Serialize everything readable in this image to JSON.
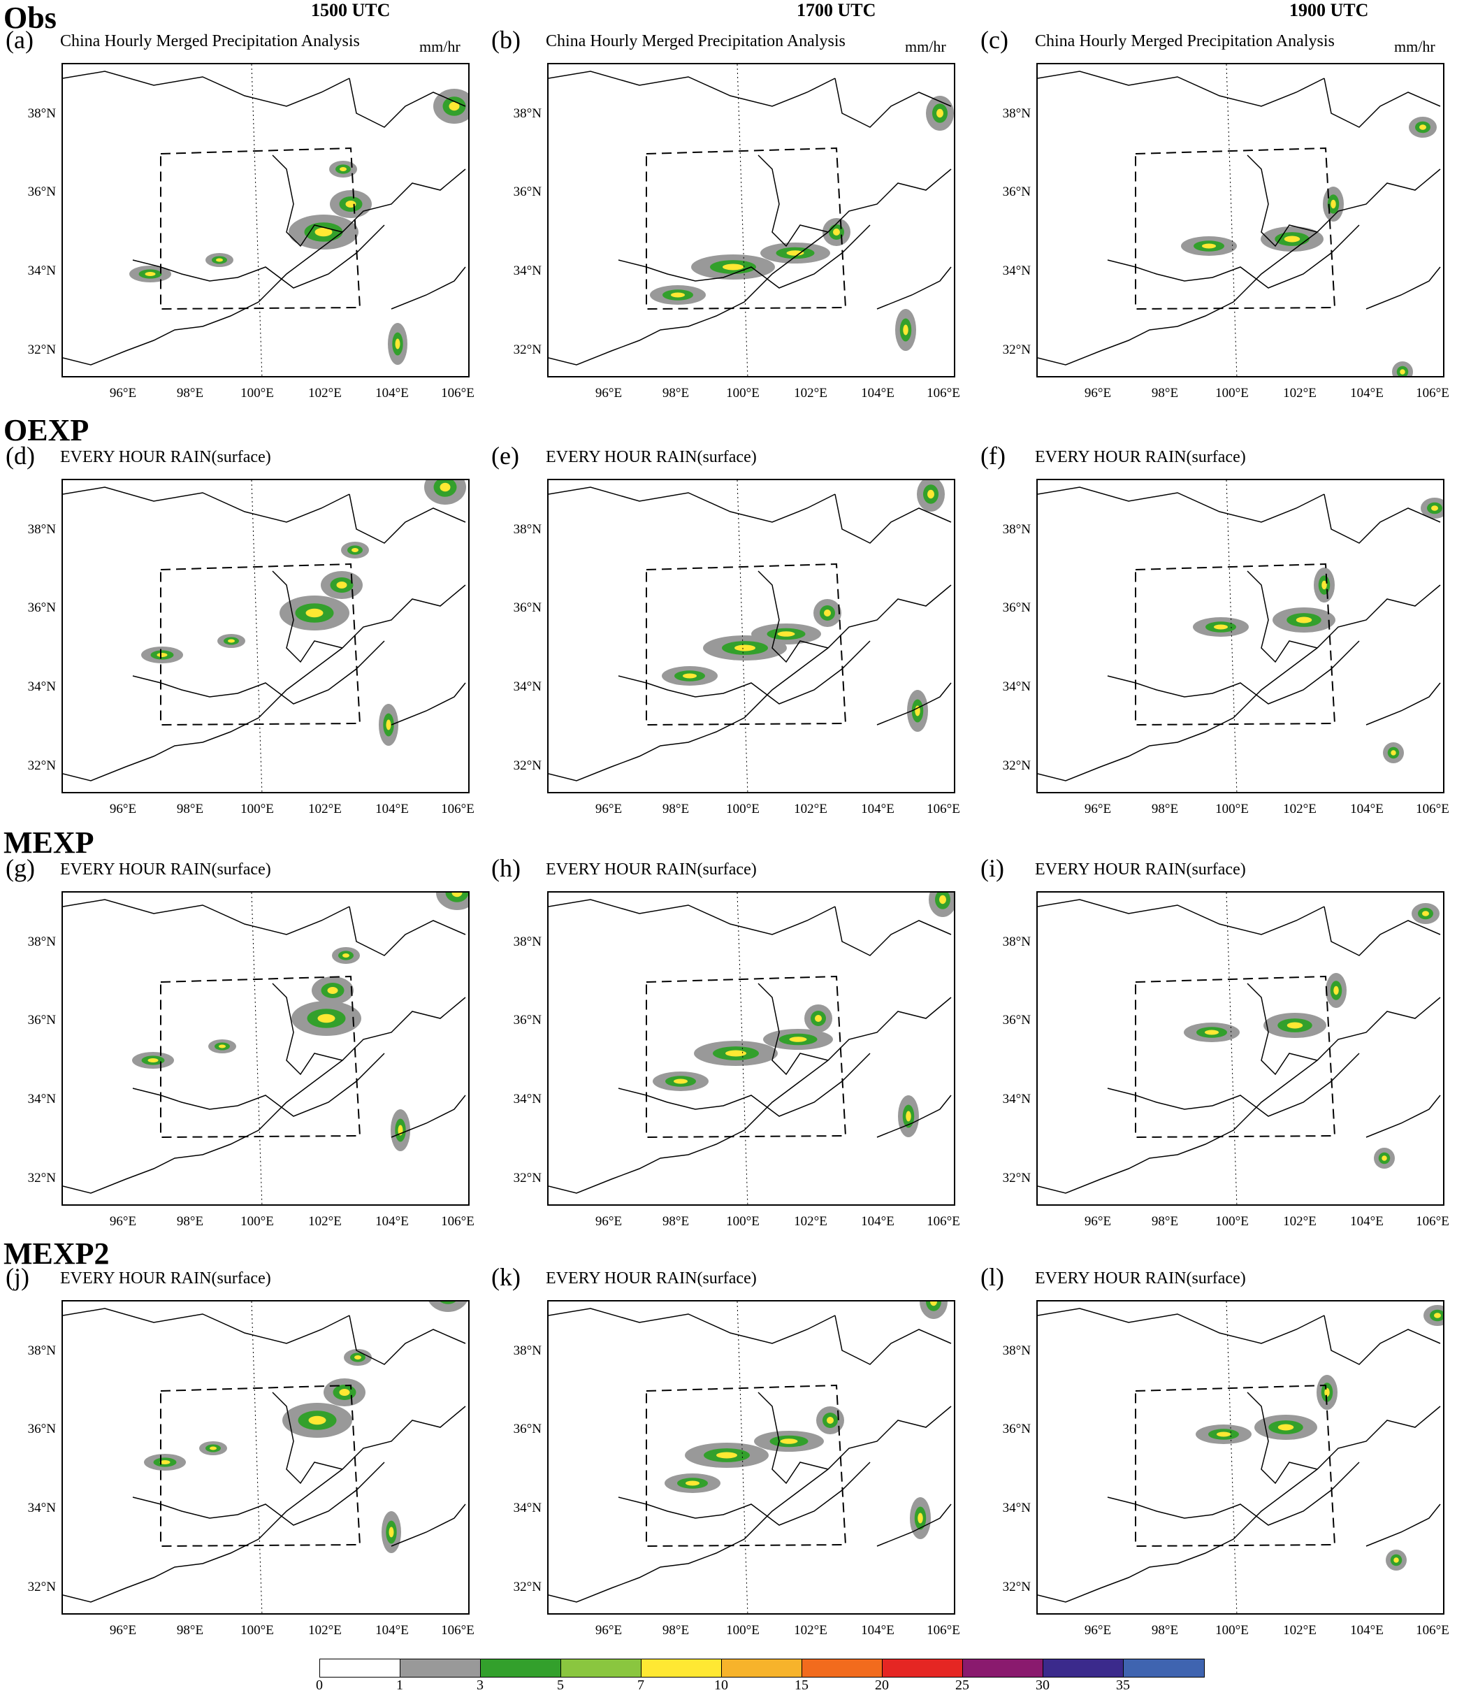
{
  "figure": {
    "times": [
      "1500 UTC",
      "1700 UTC",
      "1900 UTC"
    ],
    "rows": [
      {
        "label": "Obs",
        "title": "China Hourly Merged Precipitation Analysis",
        "unit": "mm/hr",
        "letters": [
          "(a)",
          "(b)",
          "(c)"
        ]
      },
      {
        "label": "OEXP",
        "title": "EVERY HOUR RAIN(surface)",
        "unit": "",
        "letters": [
          "(d)",
          "(e)",
          "(f)"
        ]
      },
      {
        "label": "MEXP",
        "title": "EVERY HOUR RAIN(surface)",
        "unit": "",
        "letters": [
          "(g)",
          "(h)",
          "(i)"
        ]
      },
      {
        "label": "MEXP2",
        "title": "EVERY HOUR RAIN(surface)",
        "unit": "",
        "letters": [
          "(j)",
          "(k)",
          "(l)"
        ]
      }
    ],
    "lat_ticks": [
      "38°N",
      "36°N",
      "34°N",
      "32°N"
    ],
    "lon_ticks": [
      "96°E",
      "98°E",
      "100°E",
      "102°E",
      "104°E",
      "106°E"
    ],
    "colorbar": {
      "levels": [
        "0",
        "1",
        "3",
        "5",
        "7",
        "10",
        "15",
        "20",
        "25",
        "30",
        "35"
      ],
      "colors": [
        "#ffffff",
        "#999999",
        "#33a02c",
        "#8ac63f",
        "#ffe833",
        "#f7b32b",
        "#f26b1d",
        "#e52623",
        "#8a1a6e",
        "#3b2a8c",
        "#3f64b0"
      ]
    }
  }
}
